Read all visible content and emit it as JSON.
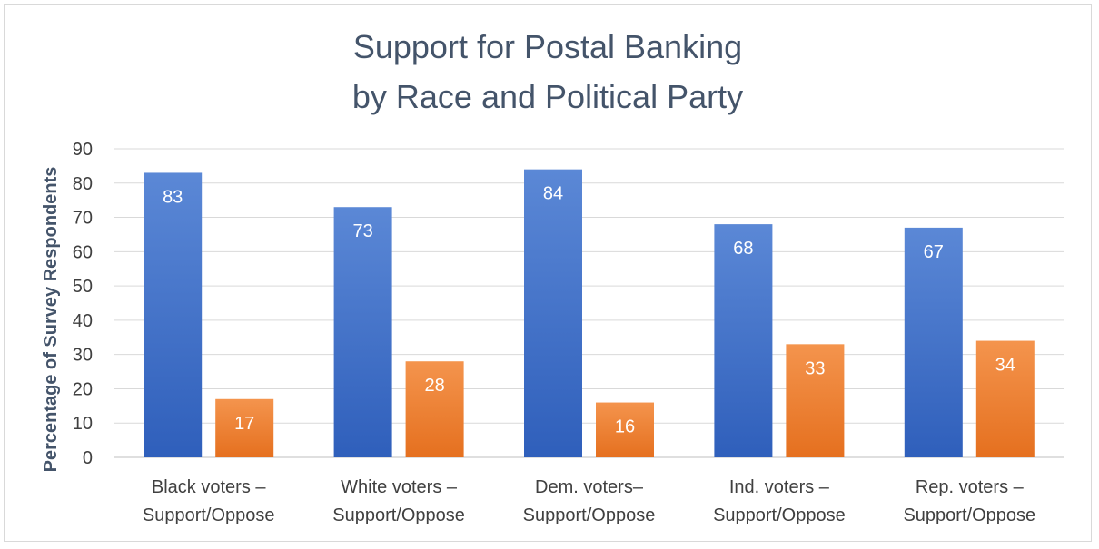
{
  "chart_data": {
    "type": "bar",
    "title_lines": [
      "Support for Postal Banking",
      "by Race and Political Party"
    ],
    "ylabel": "Percentage of Survey Respondents",
    "xlabel": "",
    "ylim": [
      0,
      90
    ],
    "yticks": [
      0,
      10,
      20,
      30,
      40,
      50,
      60,
      70,
      80,
      90
    ],
    "grid": true,
    "legend": "none",
    "categories": [
      [
        "Black voters –",
        "Support/Oppose"
      ],
      [
        "White voters –",
        "Support/Oppose"
      ],
      [
        "Dem. voters–",
        "Support/Oppose"
      ],
      [
        "Ind. voters –",
        "Support/Oppose"
      ],
      [
        "Rep. voters –",
        "Support/Oppose"
      ]
    ],
    "series": [
      {
        "values": [
          83,
          73,
          84,
          68,
          67
        ],
        "color": "#4472c4"
      },
      {
        "values": [
          17,
          28,
          16,
          33,
          34
        ],
        "color": "#ed7d31"
      }
    ]
  }
}
